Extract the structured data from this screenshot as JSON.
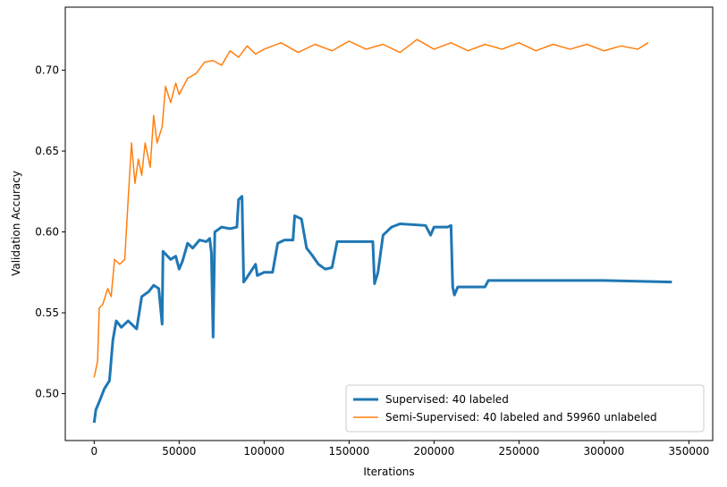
{
  "chart_data": {
    "type": "line",
    "x_label": "Iterations",
    "y_label": "Validation Accuracy",
    "xlim": [
      -17000,
      364000
    ],
    "ylim": [
      0.471,
      0.739
    ],
    "xticks": [
      0,
      50000,
      100000,
      150000,
      200000,
      250000,
      300000,
      350000
    ],
    "yticks": [
      {
        "value": 0.5,
        "label": "0.50"
      },
      0.55,
      {
        "value": 0.6,
        "label": "0.60"
      },
      0.65,
      {
        "value": 0.7,
        "label": "0.70"
      }
    ],
    "legend": "lower right",
    "series": [
      {
        "name": "Supervised: 40 labeled",
        "color": "#1f77b4",
        "width": 3,
        "x": [
          0,
          1000,
          3000,
          6000,
          9000,
          11000,
          13000,
          16000,
          20000,
          25000,
          28000,
          32000,
          35000,
          38000,
          40000,
          40500,
          45000,
          48000,
          50000,
          52000,
          55000,
          58000,
          62000,
          66000,
          68000,
          69000,
          70000,
          71000,
          75000,
          80000,
          84000,
          85000,
          87000,
          88000,
          90000,
          95000,
          96000,
          100000,
          105000,
          108000,
          112000,
          117000,
          118000,
          122000,
          125000,
          128000,
          132000,
          136000,
          140000,
          143000,
          150000,
          160000,
          164000,
          165000,
          167000,
          170000,
          175000,
          180000,
          195000,
          198000,
          200000,
          208000,
          210000,
          211000,
          212000,
          214000,
          230000,
          232000,
          300000,
          340000
        ],
        "values": [
          0.482,
          0.49,
          0.495,
          0.503,
          0.508,
          0.533,
          0.545,
          0.541,
          0.545,
          0.54,
          0.56,
          0.563,
          0.567,
          0.565,
          0.543,
          0.588,
          0.583,
          0.585,
          0.577,
          0.582,
          0.593,
          0.59,
          0.595,
          0.594,
          0.596,
          0.587,
          0.535,
          0.6,
          0.603,
          0.602,
          0.603,
          0.62,
          0.622,
          0.569,
          0.572,
          0.58,
          0.573,
          0.575,
          0.575,
          0.593,
          0.595,
          0.595,
          0.61,
          0.608,
          0.59,
          0.586,
          0.58,
          0.577,
          0.578,
          0.594,
          0.594,
          0.594,
          0.594,
          0.568,
          0.575,
          0.598,
          0.603,
          0.605,
          0.604,
          0.598,
          0.603,
          0.603,
          0.604,
          0.566,
          0.561,
          0.566,
          0.566,
          0.57,
          0.57,
          0.569
        ]
      },
      {
        "name": "Semi-Supervised: 40 labeled and 59960 unlabeled",
        "color": "#ff7f0e",
        "width": 1.5,
        "x": [
          0,
          2000,
          3000,
          5000,
          8000,
          10000,
          12000,
          15000,
          18000,
          20000,
          22000,
          24000,
          26000,
          28000,
          30000,
          33000,
          35000,
          37000,
          40000,
          42000,
          45000,
          48000,
          50000,
          55000,
          60000,
          65000,
          70000,
          75000,
          80000,
          85000,
          90000,
          95000,
          100000,
          110000,
          120000,
          130000,
          140000,
          150000,
          160000,
          170000,
          180000,
          190000,
          200000,
          210000,
          220000,
          230000,
          240000,
          250000,
          260000,
          270000,
          280000,
          290000,
          300000,
          310000,
          320000,
          326000
        ],
        "values": [
          0.51,
          0.52,
          0.553,
          0.555,
          0.565,
          0.56,
          0.583,
          0.58,
          0.583,
          0.62,
          0.655,
          0.63,
          0.645,
          0.635,
          0.655,
          0.64,
          0.672,
          0.655,
          0.665,
          0.69,
          0.68,
          0.692,
          0.685,
          0.695,
          0.698,
          0.705,
          0.706,
          0.703,
          0.712,
          0.708,
          0.715,
          0.71,
          0.713,
          0.717,
          0.711,
          0.716,
          0.712,
          0.718,
          0.713,
          0.716,
          0.711,
          0.719,
          0.713,
          0.717,
          0.712,
          0.716,
          0.713,
          0.717,
          0.712,
          0.716,
          0.713,
          0.716,
          0.712,
          0.715,
          0.713,
          0.717
        ]
      }
    ]
  }
}
